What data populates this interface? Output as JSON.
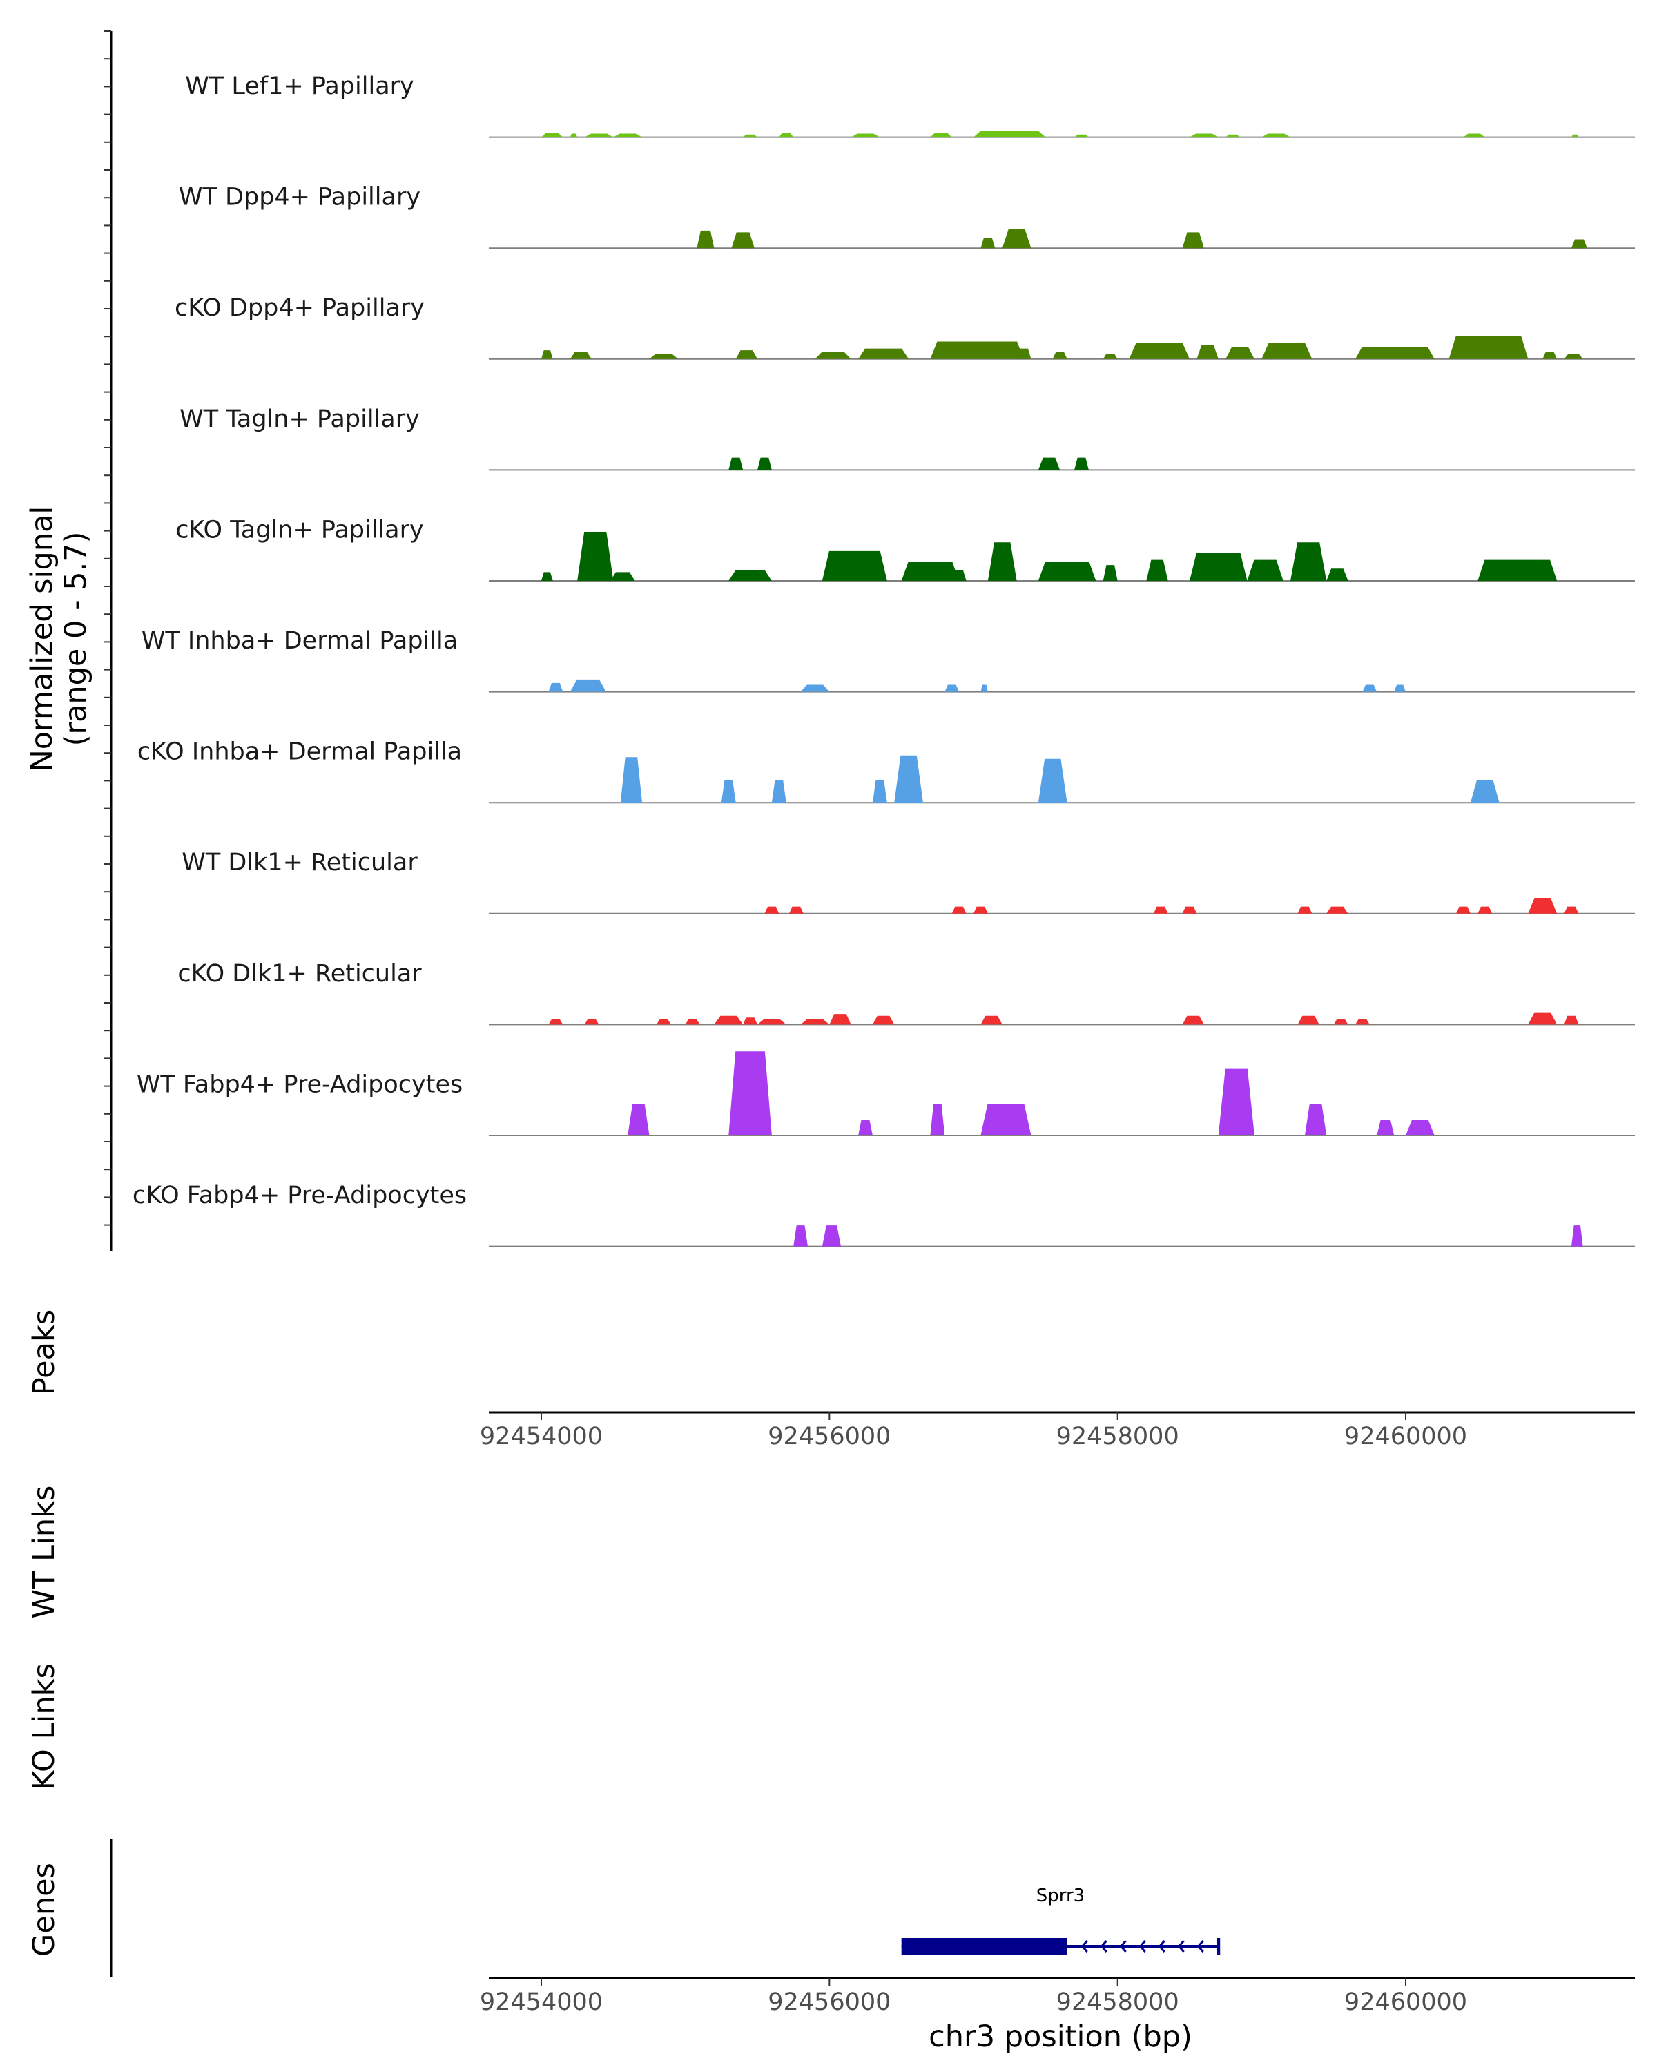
{
  "chart_data": [
    {
      "type": "area",
      "panel": "coverage",
      "ylabel_line1": "Normalized signal",
      "ylabel_line2": "(range 0 - 5.7)",
      "ylim": [
        0,
        5.7
      ],
      "xlim": [
        92453600,
        92461550
      ],
      "tracks": [
        {
          "name": "WT Lef1+ Papillary",
          "color": "#6cc417",
          "peaks": [
            [
              92454000,
              92454150,
              0.25
            ],
            [
              92454200,
              92454250,
              0.2
            ],
            [
              92454300,
              92454500,
              0.2
            ],
            [
              92454500,
              92454700,
              0.2
            ],
            [
              92455400,
              92455500,
              0.15
            ],
            [
              92455650,
              92455750,
              0.25
            ],
            [
              92456150,
              92456350,
              0.2
            ],
            [
              92456700,
              92456850,
              0.25
            ],
            [
              92457000,
              92457500,
              0.35
            ],
            [
              92457700,
              92457800,
              0.15
            ],
            [
              92458500,
              92458700,
              0.2
            ],
            [
              92458750,
              92458850,
              0.15
            ],
            [
              92459000,
              92459200,
              0.2
            ],
            [
              92460400,
              92460550,
              0.2
            ],
            [
              92461150,
              92461200,
              0.15
            ]
          ]
        },
        {
          "name": "WT Dpp4+ Papillary",
          "color": "#4a7f00",
          "peaks": [
            [
              92455080,
              92455200,
              1.0
            ],
            [
              92455320,
              92455480,
              0.9
            ],
            [
              92457050,
              92457150,
              0.6
            ],
            [
              92457200,
              92457400,
              1.1
            ],
            [
              92458450,
              92458600,
              0.9
            ],
            [
              92461150,
              92461260,
              0.5
            ]
          ]
        },
        {
          "name": "cKO Dpp4+ Papillary",
          "color": "#4a7f00",
          "peaks": [
            [
              92454000,
              92454080,
              0.5
            ],
            [
              92454200,
              92454350,
              0.4
            ],
            [
              92454750,
              92454950,
              0.3
            ],
            [
              92455350,
              92455500,
              0.5
            ],
            [
              92455900,
              92456150,
              0.4
            ],
            [
              92456200,
              92456550,
              0.6
            ],
            [
              92456700,
              92457350,
              1.0
            ],
            [
              92457300,
              92457400,
              0.6
            ],
            [
              92457550,
              92457650,
              0.4
            ],
            [
              92457900,
              92458000,
              0.3
            ],
            [
              92458080,
              92458500,
              0.9
            ],
            [
              92458550,
              92458700,
              0.8
            ],
            [
              92458750,
              92458950,
              0.7
            ],
            [
              92459000,
              92459350,
              0.9
            ],
            [
              92459650,
              92460200,
              0.7
            ],
            [
              92460300,
              92460850,
              1.3
            ],
            [
              92460950,
              92461050,
              0.4
            ],
            [
              92461100,
              92461230,
              0.3
            ]
          ]
        },
        {
          "name": "WT Tagln+ Papillary",
          "color": "#006400",
          "peaks": [
            [
              92455300,
              92455400,
              0.7
            ],
            [
              92455500,
              92455600,
              0.7
            ],
            [
              92457450,
              92457600,
              0.7
            ],
            [
              92457700,
              92457800,
              0.7
            ]
          ]
        },
        {
          "name": "cKO Tagln+ Papillary",
          "color": "#006400",
          "peaks": [
            [
              92454000,
              92454080,
              0.5
            ],
            [
              92454250,
              92454500,
              2.8
            ],
            [
              92454480,
              92454650,
              0.5
            ],
            [
              92455300,
              92455600,
              0.6
            ],
            [
              92455950,
              92456400,
              1.7
            ],
            [
              92456500,
              92456900,
              1.1
            ],
            [
              92456850,
              92456950,
              0.6
            ],
            [
              92457100,
              92457300,
              2.2
            ],
            [
              92457450,
              92457850,
              1.1
            ],
            [
              92457900,
              92458000,
              0.9
            ],
            [
              92458200,
              92458350,
              1.2
            ],
            [
              92458500,
              92458900,
              1.6
            ],
            [
              92458900,
              92459150,
              1.2
            ],
            [
              92459200,
              92459450,
              2.2
            ],
            [
              92459450,
              92459600,
              0.7
            ],
            [
              92460500,
              92461050,
              1.2
            ]
          ]
        },
        {
          "name": "WT Inhba+ Dermal Papilla",
          "color": "#56a0e6",
          "peaks": [
            [
              92454050,
              92454150,
              0.5
            ],
            [
              92454200,
              92454450,
              0.7
            ],
            [
              92455800,
              92456000,
              0.4
            ],
            [
              92456800,
              92456900,
              0.4
            ],
            [
              92457050,
              92457100,
              0.4
            ],
            [
              92459700,
              92459800,
              0.4
            ],
            [
              92459920,
              92460000,
              0.4
            ]
          ]
        },
        {
          "name": "cKO Inhba+ Dermal Papilla",
          "color": "#56a0e6",
          "peaks": [
            [
              92454550,
              92454700,
              2.6
            ],
            [
              92455250,
              92455350,
              1.3
            ],
            [
              92455600,
              92455700,
              1.3
            ],
            [
              92456300,
              92456400,
              1.3
            ],
            [
              92456450,
              92456650,
              2.7
            ],
            [
              92457450,
              92457650,
              2.5
            ],
            [
              92460450,
              92460650,
              1.3
            ]
          ]
        },
        {
          "name": "WT Dlk1+ Reticular",
          "color": "#f03030",
          "peaks": [
            [
              92455550,
              92455650,
              0.4
            ],
            [
              92455720,
              92455820,
              0.4
            ],
            [
              92456850,
              92456950,
              0.4
            ],
            [
              92457000,
              92457100,
              0.4
            ],
            [
              92458250,
              92458350,
              0.4
            ],
            [
              92458450,
              92458550,
              0.4
            ],
            [
              92459250,
              92459350,
              0.4
            ],
            [
              92459450,
              92459600,
              0.4
            ],
            [
              92460350,
              92460450,
              0.4
            ],
            [
              92460500,
              92460600,
              0.4
            ],
            [
              92460850,
              92461050,
              0.9
            ],
            [
              92461100,
              92461200,
              0.4
            ]
          ]
        },
        {
          "name": "cKO Dlk1+ Reticular",
          "color": "#f03030",
          "peaks": [
            [
              92454050,
              92454150,
              0.3
            ],
            [
              92454300,
              92454400,
              0.3
            ],
            [
              92454800,
              92454900,
              0.3
            ],
            [
              92455000,
              92455100,
              0.3
            ],
            [
              92455200,
              92455400,
              0.5
            ],
            [
              92455400,
              92455500,
              0.4
            ],
            [
              92455500,
              92455700,
              0.3
            ],
            [
              92455800,
              92456000,
              0.3
            ],
            [
              92456000,
              92456150,
              0.6
            ],
            [
              92456300,
              92456450,
              0.5
            ],
            [
              92457050,
              92457200,
              0.5
            ],
            [
              92458450,
              92458600,
              0.5
            ],
            [
              92459250,
              92459400,
              0.5
            ],
            [
              92459500,
              92459600,
              0.3
            ],
            [
              92459650,
              92459750,
              0.3
            ],
            [
              92460850,
              92461050,
              0.7
            ],
            [
              92461100,
              92461200,
              0.5
            ]
          ]
        },
        {
          "name": "WT Fabp4+ Pre-Adipocytes",
          "color": "#a93cf0",
          "peaks": [
            [
              92454600,
              92454750,
              1.8
            ],
            [
              92455300,
              92455600,
              4.8
            ],
            [
              92456200,
              92456300,
              0.9
            ],
            [
              92456700,
              92456800,
              1.8
            ],
            [
              92457050,
              92457400,
              1.8
            ],
            [
              92458700,
              92458950,
              3.8
            ],
            [
              92459300,
              92459450,
              1.8
            ],
            [
              92459800,
              92459920,
              0.9
            ],
            [
              92460000,
              92460200,
              0.9
            ]
          ]
        },
        {
          "name": "cKO Fabp4+ Pre-Adipocytes",
          "color": "#a93cf0",
          "peaks": [
            [
              92455750,
              92455850,
              1.2
            ],
            [
              92455950,
              92456080,
              1.2
            ],
            [
              92461150,
              92461230,
              1.2
            ]
          ]
        }
      ]
    },
    {
      "type": "line",
      "panel": "peaks",
      "ylabel": "Peaks",
      "xticks": [
        92454000,
        92456000,
        92458000,
        92460000
      ],
      "xtick_labels": [
        "92454000",
        "92456000",
        "92458000",
        "92460000"
      ]
    },
    {
      "type": "line",
      "panel": "links",
      "ylabel_wt": "WT Links",
      "ylabel_ko": "KO Links"
    },
    {
      "type": "line",
      "panel": "genes",
      "ylabel": "Genes",
      "gene": {
        "name": "Sprr3",
        "start": 92456500,
        "end": 92458700,
        "exon_start": 92456500,
        "exon_end": 92457650,
        "strand": "-",
        "color": "#00008b"
      },
      "xticks": [
        92454000,
        92456000,
        92458000,
        92460000
      ],
      "xtick_labels": [
        "92454000",
        "92456000",
        "92458000",
        "92460000"
      ],
      "xlabel": "chr3 position (bp)"
    }
  ]
}
